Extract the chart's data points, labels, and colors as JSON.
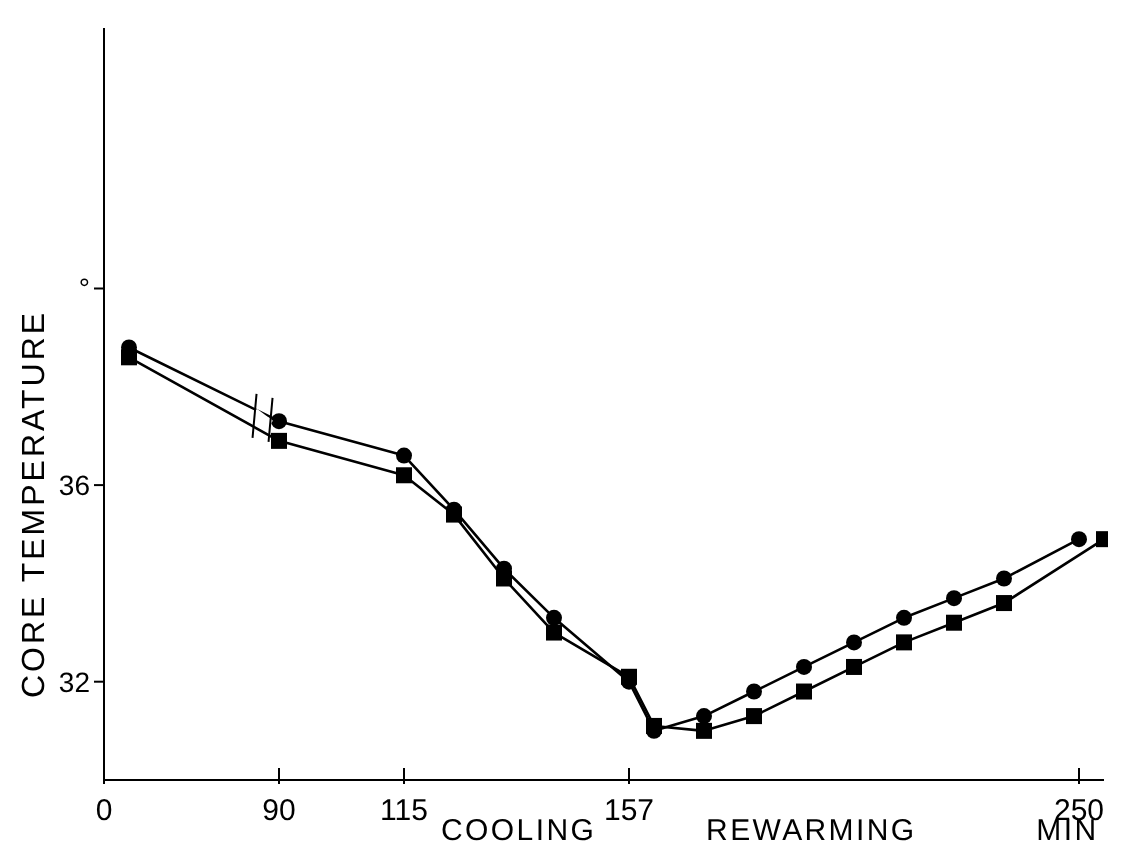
{
  "chart_data": {
    "type": "line",
    "ylabel": "CORE TEMPERATURE",
    "xlabel": "MIN",
    "annotations": [
      "COOLING",
      "REWARMING"
    ],
    "categories": [
      "0",
      null,
      null,
      null,
      null,
      null,
      null,
      "90",
      null,
      null,
      null,
      null,
      "115",
      null,
      null,
      null,
      null,
      null,
      null,
      null,
      null,
      "157",
      null,
      null,
      null,
      null,
      null,
      null,
      null,
      null,
      null,
      null,
      null,
      null,
      null,
      null,
      null,
      null,
      null,
      "250",
      null
    ],
    "ylim": [
      30,
      45.3
    ],
    "yticks": [
      32,
      36,
      {
        "value": 40,
        "label": "°"
      }
    ],
    "series": [
      {
        "color": "#000000",
        "marker": "circle",
        "values": [
          null,
          38.8,
          null,
          null,
          null,
          null,
          null,
          37.3,
          null,
          null,
          null,
          null,
          36.6,
          null,
          35.5,
          null,
          34.3,
          null,
          33.3,
          null,
          null,
          32.0,
          31.0,
          null,
          31.3,
          null,
          31.8,
          null,
          32.3,
          null,
          32.8,
          null,
          33.3,
          null,
          33.7,
          null,
          34.1,
          null,
          null,
          34.9,
          null
        ]
      },
      {
        "color": "#000000",
        "marker": "square",
        "values": [
          null,
          38.6,
          null,
          null,
          null,
          null,
          null,
          36.9,
          null,
          null,
          null,
          null,
          36.2,
          null,
          35.4,
          null,
          34.1,
          null,
          33.0,
          null,
          null,
          32.1,
          31.1,
          null,
          31.0,
          null,
          31.3,
          null,
          31.8,
          null,
          32.3,
          null,
          32.8,
          null,
          33.2,
          null,
          33.6,
          null,
          null,
          null,
          34.9
        ]
      }
    ]
  }
}
